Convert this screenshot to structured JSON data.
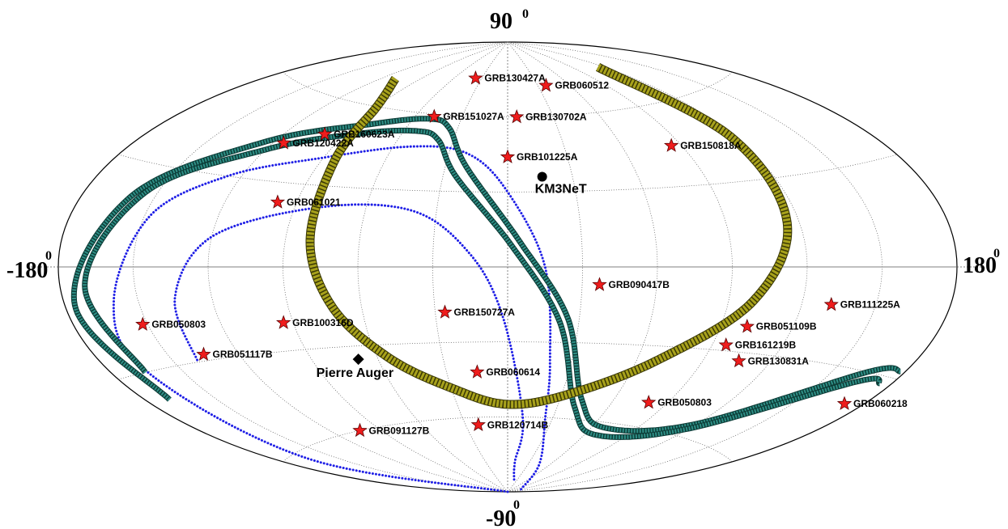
{
  "chart_data": {
    "type": "scatter",
    "projection": "aitoff",
    "axes": {
      "top": {
        "value": "90",
        "sup": "0"
      },
      "bottom": {
        "value": "-90",
        "sup": "0"
      },
      "left": {
        "value": "-180",
        "sup": "0"
      },
      "right": {
        "value": "180",
        "sup": "0"
      },
      "center_bottom_tick": "0"
    },
    "grid": true,
    "colors": {
      "star": "#ee1c1c",
      "blue_band": "#1f1fe6",
      "teal_band": "#2f8f86",
      "yellow_band": "#a8a21c",
      "grid": "#555555"
    },
    "grbs": [
      {
        "name": "GRB130427A",
        "lon": -37,
        "lat": 75
      },
      {
        "name": "GRB060512",
        "lon": 38,
        "lat": 72
      },
      {
        "name": "GRB151027A",
        "lon": -48,
        "lat": 59
      },
      {
        "name": "GRB130702A",
        "lon": 6,
        "lat": 60
      },
      {
        "name": "GRB160623A",
        "lon": -100,
        "lat": 48
      },
      {
        "name": "GRB120422A",
        "lon": -115,
        "lat": 43
      },
      {
        "name": "GRB101225A",
        "lon": 0,
        "lat": 44
      },
      {
        "name": "GRB150818A",
        "lon": 85,
        "lat": 45
      },
      {
        "name": "GRB061021",
        "lon": -98,
        "lat": 23
      },
      {
        "name": "GRB090417B",
        "lon": 37,
        "lat": -7
      },
      {
        "name": "GRB050803",
        "lon": -152,
        "lat": -17
      },
      {
        "name": "GRB150727A",
        "lon": -26,
        "lat": -18
      },
      {
        "name": "GRB100316D",
        "lon": -94,
        "lat": -20
      },
      {
        "name": "GRB111225A",
        "lon": 132,
        "lat": -12
      },
      {
        "name": "GRB051109B",
        "lon": 101,
        "lat": -21
      },
      {
        "name": "GRB051117B",
        "lon": -135,
        "lat": -28
      },
      {
        "name": "GRB161219B",
        "lon": 96,
        "lat": -28
      },
      {
        "name": "GRB130831A",
        "lon": 106,
        "lat": -33
      },
      {
        "name": "GRB060614",
        "lon": -15,
        "lat": -42
      },
      {
        "name": "GRB060218",
        "lon": 172,
        "lat": -39
      },
      {
        "name": "GRB050803",
        "lon": 80,
        "lat": -51
      },
      {
        "name": "GRB120714B",
        "lon": -21,
        "lat": -63
      },
      {
        "name": "GRB091127B",
        "lon": -103,
        "lat": -60
      }
    ],
    "sites": [
      {
        "name": "KM3NeT",
        "marker": "circle",
        "lon": 16,
        "lat": 36
      },
      {
        "name": "Pierre Auger",
        "marker": "diamond",
        "lon": -69,
        "lat": -35
      }
    ],
    "bands": [
      {
        "id": "blue-outer",
        "color": "blue",
        "style": "dots",
        "points": [
          [
            -75,
            -90
          ],
          [
            -165,
            -62
          ],
          [
            -165,
            -30
          ],
          [
            -160,
            -10
          ],
          [
            -148,
            15
          ],
          [
            -126,
            30
          ],
          [
            -90,
            40
          ],
          [
            -50,
            47
          ],
          [
            -20,
            45
          ],
          [
            0,
            30
          ],
          [
            15,
            0
          ],
          [
            20,
            -38
          ],
          [
            25,
            -60
          ],
          [
            45,
            -78
          ],
          [
            120,
            -88
          ]
        ]
      },
      {
        "id": "blue-inner",
        "color": "blue",
        "style": "dots",
        "points": [
          [
            20,
            -85
          ],
          [
            10,
            -78
          ],
          [
            10,
            -60
          ],
          [
            -2,
            -20
          ],
          [
            -15,
            5
          ],
          [
            -40,
            22
          ],
          [
            -80,
            22
          ],
          [
            -120,
            10
          ],
          [
            -135,
            -10
          ],
          [
            -140,
            -30
          ]
        ]
      },
      {
        "id": "teal-outer",
        "color": "teal",
        "style": "stars",
        "points": [
          [
            -170,
            -38
          ],
          [
            -176,
            -10
          ],
          [
            -160,
            20
          ],
          [
            -125,
            42
          ],
          [
            -80,
            54
          ],
          [
            -50,
            58
          ],
          [
            -35,
            55
          ],
          [
            -20,
            40
          ],
          [
            5,
            10
          ],
          [
            25,
            -20
          ],
          [
            42,
            -52
          ],
          [
            70,
            -62
          ],
          [
            120,
            -55
          ],
          [
            165,
            -30
          ],
          [
            178,
            -28
          ]
        ]
      },
      {
        "id": "teal-inner",
        "color": "teal",
        "style": "stars",
        "points": [
          [
            -166,
            -30
          ],
          [
            -170,
            -5
          ],
          [
            -155,
            22
          ],
          [
            -120,
            40
          ],
          [
            -82,
            50
          ],
          [
            -52,
            53
          ],
          [
            -38,
            50
          ],
          [
            -24,
            36
          ],
          [
            2,
            8
          ],
          [
            22,
            -22
          ],
          [
            40,
            -55
          ],
          [
            70,
            -65
          ],
          [
            120,
            -57
          ],
          [
            165,
            -33
          ],
          [
            175,
            -32
          ]
        ]
      },
      {
        "id": "yellow",
        "color": "yellow",
        "style": "diamonds",
        "points": [
          [
            -110,
            70
          ],
          [
            -90,
            60
          ],
          [
            -84,
            40
          ],
          [
            -80,
            10
          ],
          [
            -72,
            -15
          ],
          [
            -55,
            -35
          ],
          [
            -30,
            -48
          ],
          [
            0,
            -55
          ],
          [
            35,
            -50
          ],
          [
            70,
            -35
          ],
          [
            100,
            -12
          ],
          [
            115,
            15
          ],
          [
            118,
            45
          ],
          [
            115,
            75
          ]
        ]
      }
    ]
  }
}
